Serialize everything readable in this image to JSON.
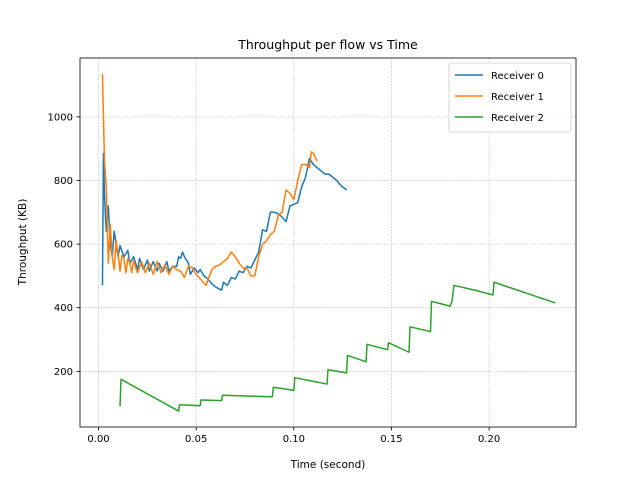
{
  "chart_data": {
    "type": "line",
    "title": "Throughput per flow vs Time",
    "xlabel": "Time (second)",
    "ylabel": "Throughput (KB)",
    "xlim": [
      -0.0095,
      0.2445
    ],
    "ylim": [
      25,
      1185
    ],
    "xticks": [
      0.0,
      0.05,
      0.1,
      0.15,
      0.2
    ],
    "xtick_labels": [
      "0.00",
      "0.05",
      "0.10",
      "0.15",
      "0.20"
    ],
    "yticks": [
      200,
      400,
      600,
      800,
      1000
    ],
    "ytick_labels": [
      "200",
      "400",
      "600",
      "800",
      "1000"
    ],
    "grid": true,
    "legend_position": "top-right",
    "series": [
      {
        "name": "Receiver 0",
        "color": "#1f77b4",
        "x": [
          0.002,
          0.0025,
          0.003,
          0.0035,
          0.004,
          0.005,
          0.006,
          0.007,
          0.008,
          0.01,
          0.011,
          0.013,
          0.015,
          0.016,
          0.018,
          0.02,
          0.021,
          0.023,
          0.025,
          0.026,
          0.028,
          0.03,
          0.031,
          0.033,
          0.035,
          0.036,
          0.038,
          0.04,
          0.041,
          0.042,
          0.043,
          0.044,
          0.046,
          0.047,
          0.049,
          0.051,
          0.052,
          0.054,
          0.056,
          0.058,
          0.06,
          0.063,
          0.064,
          0.066,
          0.068,
          0.07,
          0.072,
          0.074,
          0.076,
          0.078,
          0.08,
          0.082,
          0.084,
          0.086,
          0.088,
          0.09,
          0.092,
          0.094,
          0.096,
          0.098,
          0.1,
          0.102,
          0.104,
          0.106,
          0.108,
          0.11,
          0.112,
          0.114,
          0.116,
          0.118,
          0.12,
          0.122,
          0.124,
          0.127
        ],
        "y": [
          470,
          885,
          760,
          690,
          640,
          720,
          600,
          560,
          640,
          560,
          595,
          560,
          580,
          540,
          560,
          520,
          555,
          520,
          550,
          515,
          545,
          515,
          540,
          515,
          545,
          515,
          530,
          530,
          560,
          555,
          575,
          560,
          540,
          505,
          525,
          510,
          520,
          500,
          490,
          475,
          465,
          455,
          480,
          470,
          495,
          490,
          515,
          510,
          530,
          525,
          550,
          575,
          645,
          640,
          700,
          700,
          695,
          685,
          670,
          720,
          725,
          730,
          780,
          810,
          870,
          850,
          840,
          830,
          820,
          820,
          810,
          800,
          785,
          770
        ]
      },
      {
        "name": "Receiver 1",
        "color": "#ff7f0e",
        "x": [
          0.002,
          0.0025,
          0.003,
          0.004,
          0.005,
          0.006,
          0.007,
          0.008,
          0.009,
          0.01,
          0.011,
          0.012,
          0.013,
          0.014,
          0.015,
          0.016,
          0.017,
          0.018,
          0.019,
          0.02,
          0.022,
          0.024,
          0.026,
          0.028,
          0.03,
          0.032,
          0.034,
          0.036,
          0.038,
          0.04,
          0.042,
          0.044,
          0.046,
          0.048,
          0.05,
          0.055,
          0.058,
          0.06,
          0.062,
          0.064,
          0.066,
          0.068,
          0.07,
          0.072,
          0.074,
          0.076,
          0.078,
          0.08,
          0.082,
          0.084,
          0.086,
          0.088,
          0.09,
          0.092,
          0.094,
          0.096,
          0.098,
          0.1,
          0.102,
          0.104,
          0.106,
          0.108,
          0.109,
          0.11,
          0.112
        ],
        "y": [
          1135,
          1000,
          870,
          770,
          540,
          660,
          560,
          520,
          610,
          570,
          515,
          565,
          555,
          510,
          555,
          540,
          510,
          550,
          525,
          510,
          545,
          510,
          540,
          505,
          545,
          510,
          535,
          505,
          530,
          520,
          515,
          495,
          530,
          525,
          505,
          470,
          520,
          530,
          535,
          545,
          555,
          575,
          560,
          540,
          525,
          525,
          500,
          500,
          560,
          600,
          610,
          630,
          640,
          690,
          700,
          770,
          760,
          740,
          800,
          850,
          850,
          840,
          890,
          885,
          860
        ]
      },
      {
        "name": "Receiver 2",
        "color": "#2ca02c",
        "x": [
          0.011,
          0.0115,
          0.041,
          0.0415,
          0.052,
          0.0525,
          0.063,
          0.0635,
          0.089,
          0.0895,
          0.1,
          0.1005,
          0.117,
          0.1175,
          0.127,
          0.1275,
          0.137,
          0.1375,
          0.148,
          0.1485,
          0.159,
          0.1595,
          0.17,
          0.1705,
          0.18,
          0.181,
          0.182,
          0.193,
          0.202,
          0.2025,
          0.234
        ],
        "y": [
          90,
          175,
          75,
          95,
          92,
          110,
          108,
          125,
          120,
          150,
          140,
          180,
          160,
          205,
          195,
          250,
          230,
          285,
          268,
          290,
          260,
          340,
          325,
          420,
          405,
          420,
          470,
          455,
          440,
          480,
          415
        ]
      }
    ]
  }
}
